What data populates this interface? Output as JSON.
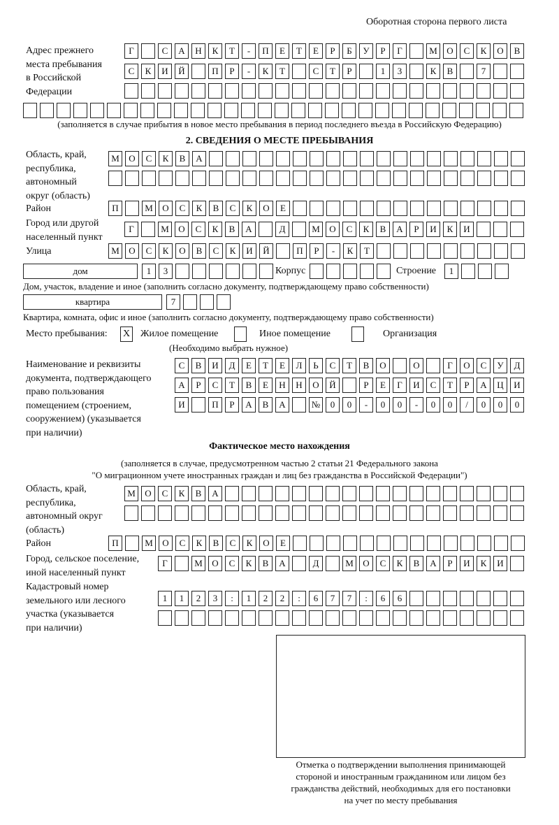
{
  "header": "Оборотная сторона первого листа",
  "prev_address": {
    "label": [
      "Адрес прежнего",
      "места пребывания",
      "в Российской",
      "Федерации"
    ],
    "rows": [
      [
        "Г",
        "",
        "С",
        "А",
        "Н",
        "К",
        "Т",
        "-",
        "П",
        "Е",
        "Т",
        "Е",
        "Р",
        "Б",
        "У",
        "Р",
        "Г",
        "",
        "М",
        "О",
        "С",
        "К",
        "О",
        "В"
      ],
      [
        "С",
        "К",
        "И",
        "Й",
        "",
        "П",
        "Р",
        "-",
        "К",
        "Т",
        "",
        "С",
        "Т",
        "Р",
        "",
        "1",
        "3",
        "",
        "К",
        "В",
        "",
        "7",
        "",
        ""
      ],
      [
        "",
        "",
        "",
        "",
        "",
        "",
        "",
        "",
        "",
        "",
        "",
        "",
        "",
        "",
        "",
        "",
        "",
        "",
        "",
        "",
        "",
        "",
        "",
        ""
      ],
      [
        "",
        "",
        "",
        "",
        "",
        "",
        "",
        "",
        "",
        "",
        "",
        "",
        "",
        "",
        "",
        "",
        "",
        "",
        "",
        "",
        "",
        "",
        "",
        "",
        "",
        "",
        "",
        "",
        "",
        ""
      ]
    ],
    "note": "(заполняется в случае прибытия в новое место пребывания в период последнего въезда в Российскую Федерацию)"
  },
  "section2": {
    "title": "2. СВЕДЕНИЯ О МЕСТЕ ПРЕБЫВАНИЯ",
    "region_label": [
      "Область, край,",
      "республика,",
      "автономный",
      "округ (область)"
    ],
    "region_rows": [
      [
        "М",
        "О",
        "С",
        "К",
        "В",
        "А",
        "",
        "",
        "",
        "",
        "",
        "",
        "",
        "",
        "",
        "",
        "",
        "",
        "",
        "",
        "",
        "",
        "",
        "",
        ""
      ],
      [
        "",
        "",
        "",
        "",
        "",
        "",
        "",
        "",
        "",
        "",
        "",
        "",
        "",
        "",
        "",
        "",
        "",
        "",
        "",
        "",
        "",
        "",
        "",
        "",
        ""
      ]
    ],
    "district_label": "Район",
    "district_row": [
      "П",
      "",
      "М",
      "О",
      "С",
      "К",
      "В",
      "С",
      "К",
      "О",
      "Е",
      "",
      "",
      "",
      "",
      "",
      "",
      "",
      "",
      "",
      "",
      "",
      "",
      "",
      ""
    ],
    "city_label": [
      "Город или другой",
      "населенный пункт"
    ],
    "city_row": [
      "Г",
      "",
      "М",
      "О",
      "С",
      "К",
      "В",
      "А",
      "",
      "Д",
      "",
      "М",
      "О",
      "С",
      "К",
      "В",
      "А",
      "Р",
      "И",
      "К",
      "И",
      "",
      "",
      ""
    ],
    "street_label": "Улица",
    "street_row": [
      "М",
      "О",
      "С",
      "К",
      "О",
      "В",
      "С",
      "К",
      "И",
      "Й",
      "",
      "П",
      "Р",
      "-",
      "К",
      "Т",
      "",
      "",
      "",
      "",
      "",
      "",
      "",
      "",
      ""
    ],
    "house_type": "дом",
    "house_cells": [
      "1",
      "3",
      "",
      "",
      "",
      "",
      "",
      ""
    ],
    "korpus_label": "Корпус",
    "korpus_cells": [
      "",
      "",
      "",
      "",
      ""
    ],
    "building_label": "Строение",
    "building_cells": [
      "1",
      "",
      "",
      ""
    ],
    "house_note": "Дом, участок, владение и иное (заполнить согласно документу, подтверждающему право собственности)",
    "apt_type": "квартира",
    "apt_cells": [
      "7",
      "",
      "",
      ""
    ],
    "apt_note": "Квартира, комната, офис и иное (заполнить согласно документу, подтверждающему право собственности)",
    "stay_label": "Место пребывания:",
    "stay_options": [
      {
        "label": "Жилое помещение",
        "mark": "X"
      },
      {
        "label": "Иное помещение",
        "mark": ""
      },
      {
        "label": "Организация",
        "mark": ""
      }
    ],
    "stay_note": "(Необходимо выбрать нужное)",
    "doc_label": [
      "Наименование и реквизиты",
      "документа, подтверждающего",
      "право пользования",
      "помещением (строением,",
      "сооружением) (указывается",
      "при наличии)"
    ],
    "doc_rows": [
      [
        "С",
        "В",
        "И",
        "Д",
        "Е",
        "Т",
        "Е",
        "Л",
        "Ь",
        "С",
        "Т",
        "В",
        "О",
        "",
        "О",
        "",
        "Г",
        "О",
        "С",
        "У",
        "Д"
      ],
      [
        "А",
        "Р",
        "С",
        "Т",
        "В",
        "Е",
        "Н",
        "Н",
        "О",
        "Й",
        "",
        "Р",
        "Е",
        "Г",
        "И",
        "С",
        "Т",
        "Р",
        "А",
        "Ц",
        "И"
      ],
      [
        "И",
        "",
        "П",
        "Р",
        "А",
        "В",
        "А",
        "",
        "№",
        "0",
        "0",
        "-",
        "0",
        "0",
        "-",
        "0",
        "0",
        "/",
        "0",
        "0",
        "0"
      ]
    ]
  },
  "actual": {
    "title": "Фактическое место нахождения",
    "note1": "(заполняется в случае, предусмотренном частью 2 статьи 21 Федерального закона",
    "note2": "\"О миграционном учете иностранных граждан и лиц без гражданства в Российской Федерации\")",
    "region_label": [
      "Область, край,",
      "республика,",
      "автономный округ",
      "(область)"
    ],
    "region_rows": [
      [
        "М",
        "О",
        "С",
        "К",
        "В",
        "А",
        "",
        "",
        "",
        "",
        "",
        "",
        "",
        "",
        "",
        "",
        "",
        "",
        "",
        "",
        "",
        "",
        "",
        ""
      ],
      [
        "",
        "",
        "",
        "",
        "",
        "",
        "",
        "",
        "",
        "",
        "",
        "",
        "",
        "",
        "",
        "",
        "",
        "",
        "",
        "",
        "",
        "",
        "",
        ""
      ]
    ],
    "district_label": "Район",
    "district_row": [
      "П",
      "",
      "М",
      "О",
      "С",
      "К",
      "В",
      "С",
      "К",
      "О",
      "Е",
      "",
      "",
      "",
      "",
      "",
      "",
      "",
      "",
      "",
      "",
      "",
      "",
      "",
      ""
    ],
    "city_label": [
      "Город, сельское поселение,",
      "иной населенный пункт"
    ],
    "city_row": [
      "Г",
      "",
      "М",
      "О",
      "С",
      "К",
      "В",
      "А",
      "",
      "Д",
      "",
      "М",
      "О",
      "С",
      "К",
      "В",
      "А",
      "Р",
      "И",
      "К",
      "И",
      ""
    ],
    "cadastre_label": [
      "Кадастровый номер",
      "земельного или лесного",
      "участка (указывается",
      "при наличии)"
    ],
    "cadastre_rows": [
      [
        "1",
        "1",
        "2",
        "3",
        ":",
        "1",
        "2",
        "2",
        ":",
        "6",
        "7",
        "7",
        ":",
        "6",
        "6",
        "",
        "",
        "",
        "",
        "",
        "",
        ""
      ],
      [
        "",
        "",
        "",
        "",
        "",
        "",
        "",
        "",
        "",
        "",
        "",
        "",
        "",
        "",
        "",
        "",
        "",
        "",
        "",
        "",
        "",
        ""
      ]
    ]
  },
  "stamp_caption": [
    "Отметка о подтверждении выполнения принимающей",
    "стороной и иностранным гражданином или лицом без",
    "гражданства действий, необходимых для его постановки",
    "на учет по месту пребывания"
  ]
}
